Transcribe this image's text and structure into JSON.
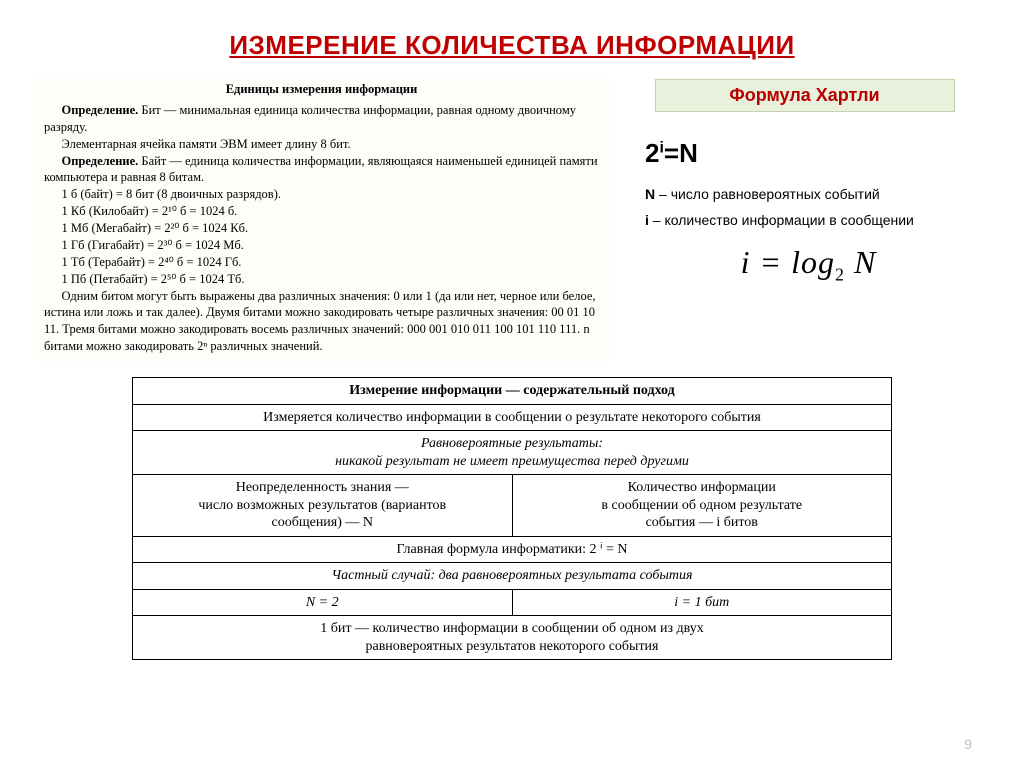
{
  "title": "ИЗМЕРЕНИЕ КОЛИЧЕСТВА ИНФОРМАЦИИ",
  "left": {
    "heading": "Единицы измерения информации",
    "def1_label": "Определение.",
    "def1_text": " Бит — минимальная единица количества информации, равная одному двоичному разряду.",
    "mem": "Элементарная ячейка памяти ЭВМ имеет длину 8 бит.",
    "def2_label": "Определение.",
    "def2_text": " Байт — единица количества информации, являющаяся наименьшей единицей памяти компьютера и равная 8 битам.",
    "c1": "1 б (байт) = 8 бит (8 двоичных разрядов).",
    "c2": "1 Кб (Килобайт) = 2¹⁰ б = 1024 б.",
    "c3": "1 Мб (Мегабайт) = 2²⁰ б = 1024 Кб.",
    "c4": "1 Гб (Гигабайт) = 2³⁰ б = 1024 Мб.",
    "c5": "1 Тб (Терабайт) = 2⁴⁰ б = 1024 Гб.",
    "c6": "1 Пб (Петабайт) = 2⁵⁰ б = 1024 Тб.",
    "para": "Одним битом могут быть выражены два различных значения: 0 или 1 (да или нет, черное или белое, истина или ложь и так далее). Двумя битами можно закодировать четыре различных значения: 00  01  10  11. Тремя битами можно закодировать восемь различных значений: 000 001 010 011 100 101 110 111. n битами можно закодировать 2ⁿ различных значений."
  },
  "hartley": {
    "title": "Формула Хартли",
    "formula_top_html": "2<sup>i</sup>=N",
    "n_label": "N",
    "n_desc": " – число равновероятных событий",
    "i_label": "i",
    "i_desc": " – количество информации в сообщении",
    "log_html": "i = log<span class=\"sub\">2</span> N"
  },
  "table": {
    "r1": "Измерение информации — содержательный подход",
    "r2": "Измеряется количество информации в сообщении о результате некоторого события",
    "r3": "Равновероятные результаты:\nникакой результат не имеет преимущества перед другими",
    "r4a": "Неопределенность знания —\nчисло возможных результатов (вариантов\nсообщения) — N",
    "r4b": "Количество информации\nв сообщении об одном результате\nсобытия — i битов",
    "r5": "Главная формула информатики:  2 ⁱ = N",
    "r6": "Частный случай: два равновероятных результата события",
    "r7a": "N = 2",
    "r7b": "i = 1 бит",
    "r8": "1 бит — количество информации в сообщении об одном из двух\nравновероятных результатов некоторого события"
  },
  "page_number": "9",
  "colors": {
    "title": "#c00000",
    "hartley_bg": "#e9f0dc",
    "hartley_border": "#c5d3b1",
    "hartley_text": "#b80000",
    "pagenum": "#bfbfbf"
  }
}
